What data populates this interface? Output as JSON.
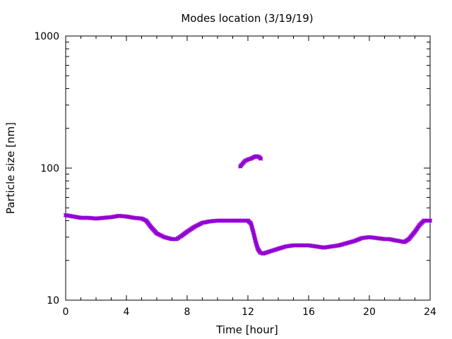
{
  "chart_data": {
    "type": "scatter",
    "title": "Modes location (3/19/19)",
    "xlabel": "Time [hour]",
    "ylabel": "Particle size [nm]",
    "xlim": [
      0,
      24
    ],
    "ylim": [
      10,
      1000
    ],
    "y_scale": "log",
    "x_ticks": [
      0,
      4,
      8,
      12,
      16,
      20,
      24
    ],
    "x_tick_labels": [
      "0",
      "4",
      "8",
      "12",
      "16",
      "20",
      "24"
    ],
    "y_ticks": [
      10,
      100,
      1000
    ],
    "y_tick_labels": [
      "10",
      "100",
      "1000"
    ],
    "grid": false,
    "marker_color": "#9400d3",
    "series": [
      {
        "points": [
          [
            0.0,
            44
          ],
          [
            0.5,
            43
          ],
          [
            1.0,
            42
          ],
          [
            1.5,
            42
          ],
          [
            2.0,
            41.5
          ],
          [
            2.5,
            42
          ],
          [
            3.0,
            42.5
          ],
          [
            3.5,
            43.5
          ],
          [
            4.0,
            43
          ],
          [
            4.5,
            42
          ],
          [
            5.0,
            41.5
          ],
          [
            5.3,
            40
          ],
          [
            5.6,
            36
          ],
          [
            6.0,
            32
          ],
          [
            6.5,
            30
          ],
          [
            7.0,
            29
          ],
          [
            7.3,
            29
          ],
          [
            7.6,
            30.5
          ],
          [
            8.0,
            33
          ],
          [
            8.5,
            36
          ],
          [
            9.0,
            38.5
          ],
          [
            9.5,
            39.5
          ],
          [
            10.0,
            40
          ],
          [
            10.5,
            40
          ],
          [
            11.0,
            40
          ],
          [
            11.5,
            40
          ],
          [
            12.0,
            40
          ],
          [
            12.2,
            38
          ],
          [
            12.35,
            33
          ],
          [
            12.5,
            28
          ],
          [
            12.65,
            24.5
          ],
          [
            12.8,
            23
          ],
          [
            13.0,
            22.5
          ],
          [
            13.5,
            23.5
          ],
          [
            14.0,
            24.5
          ],
          [
            14.5,
            25.5
          ],
          [
            15.0,
            26
          ],
          [
            15.5,
            26
          ],
          [
            16.0,
            26
          ],
          [
            16.5,
            25.5
          ],
          [
            17.0,
            25
          ],
          [
            17.5,
            25.5
          ],
          [
            18.0,
            26
          ],
          [
            18.5,
            27
          ],
          [
            19.0,
            28
          ],
          [
            19.5,
            29.5
          ],
          [
            20.0,
            30
          ],
          [
            20.5,
            29.5
          ],
          [
            21.0,
            29
          ],
          [
            21.3,
            29
          ],
          [
            21.6,
            28.5
          ],
          [
            22.0,
            28
          ],
          [
            22.3,
            27.5
          ],
          [
            22.6,
            29
          ],
          [
            23.0,
            33
          ],
          [
            23.3,
            37
          ],
          [
            23.6,
            40
          ],
          [
            24.0,
            40
          ]
        ]
      },
      {
        "points": [
          [
            11.5,
            103
          ],
          [
            11.65,
            108
          ],
          [
            11.8,
            113
          ],
          [
            12.0,
            116
          ],
          [
            12.2,
            118
          ],
          [
            12.4,
            121
          ],
          [
            12.55,
            123
          ],
          [
            12.7,
            122
          ],
          [
            12.85,
            118
          ]
        ]
      }
    ]
  }
}
